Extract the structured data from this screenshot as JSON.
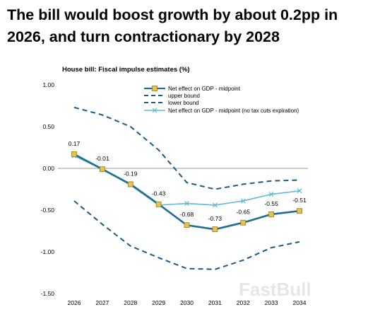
{
  "headline": "The bill would boost growth by about 0.2pp in 2026, and turn contractionary by 2028",
  "watermark": "FastBull",
  "colors": {
    "main": "#1f6e94",
    "bounds": "#1d5a80",
    "no_expiration": "#5db8d8",
    "marker_fill": "#e8c34a",
    "marker_stroke": "#9a7a1a",
    "zero_line": "#999999"
  },
  "chart_data": {
    "type": "line",
    "title": "House bill: Fiscal impulse estimates (%)",
    "categories": [
      "2026",
      "2027",
      "2028",
      "2029",
      "2030",
      "2031",
      "2032",
      "2033",
      "2034"
    ],
    "ylim": [
      -1.5,
      1.0
    ],
    "yticks": [
      "1.00",
      "0.50",
      "0.00",
      "-0.50",
      "-1.00",
      "-1.50"
    ],
    "ytick_values": [
      1.0,
      0.5,
      0.0,
      -0.5,
      -1.0,
      -1.5
    ],
    "grid": false,
    "legend_position": "top",
    "series": [
      {
        "name": "Net effect on GDP - midpoint",
        "style": "solid-marker",
        "values": [
          0.17,
          -0.01,
          -0.19,
          -0.43,
          -0.68,
          -0.73,
          -0.65,
          -0.55,
          -0.51
        ],
        "labels": [
          "0.17",
          "-0.01",
          "-0.19",
          "-0.43",
          "-0.68",
          "-0.73",
          "-0.65",
          "-0.55",
          "-0.51"
        ]
      },
      {
        "name": "upper bound",
        "style": "dashed",
        "values": [
          0.73,
          0.64,
          0.5,
          0.22,
          -0.17,
          -0.25,
          -0.19,
          -0.15,
          -0.14
        ]
      },
      {
        "name": "lower bound",
        "style": "dashed",
        "values": [
          -0.39,
          -0.67,
          -0.93,
          -1.07,
          -1.2,
          -1.21,
          -1.1,
          -0.95,
          -0.88
        ]
      },
      {
        "name": "Net effect on GDP - midpoint (no tax cuts expiration)",
        "style": "cross-marker",
        "values": [
          0.15,
          -0.01,
          -0.2,
          -0.44,
          -0.42,
          -0.44,
          -0.39,
          -0.31,
          -0.27
        ]
      }
    ]
  }
}
